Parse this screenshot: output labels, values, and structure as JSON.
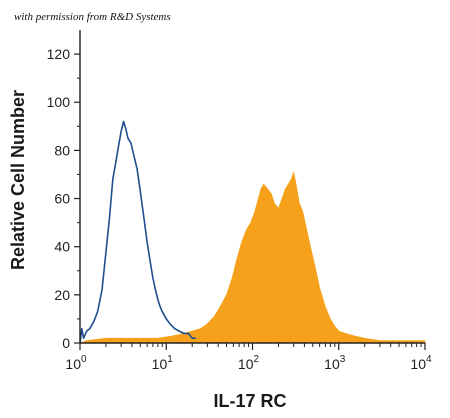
{
  "credit": "with permission from R&D Systems",
  "chart_data": {
    "type": "area",
    "xlabel": "IL-17 RC",
    "ylabel": "Relative Cell Number",
    "xscale": "log",
    "xlim": [
      1,
      10000
    ],
    "ylim": [
      0,
      130
    ],
    "x_ticks": [
      {
        "value": 1,
        "base": "10",
        "exp": "0"
      },
      {
        "value": 10,
        "base": "10",
        "exp": "1"
      },
      {
        "value": 100,
        "base": "10",
        "exp": "2"
      },
      {
        "value": 1000,
        "base": "10",
        "exp": "3"
      },
      {
        "value": 10000,
        "base": "10",
        "exp": "4"
      }
    ],
    "y_ticks": [
      0,
      20,
      40,
      60,
      80,
      100,
      120
    ],
    "grid": false,
    "legend": "none",
    "series": [
      {
        "style": "outline",
        "color": "#1f4e8c",
        "points": [
          [
            1.0,
            0
          ],
          [
            1.05,
            6
          ],
          [
            1.1,
            2
          ],
          [
            1.2,
            5
          ],
          [
            1.3,
            6
          ],
          [
            1.45,
            9
          ],
          [
            1.6,
            13
          ],
          [
            1.8,
            22
          ],
          [
            2.0,
            38
          ],
          [
            2.2,
            52
          ],
          [
            2.4,
            68
          ],
          [
            2.6,
            75
          ],
          [
            2.8,
            82
          ],
          [
            3.0,
            88
          ],
          [
            3.2,
            92
          ],
          [
            3.4,
            89
          ],
          [
            3.6,
            85
          ],
          [
            3.9,
            83
          ],
          [
            4.2,
            78
          ],
          [
            4.6,
            72
          ],
          [
            5.0,
            63
          ],
          [
            5.5,
            52
          ],
          [
            6.0,
            42
          ],
          [
            6.5,
            34
          ],
          [
            7.0,
            27
          ],
          [
            7.5,
            22
          ],
          [
            8.0,
            18
          ],
          [
            8.5,
            15
          ],
          [
            9.0,
            13
          ],
          [
            10.0,
            10
          ],
          [
            11.0,
            8
          ],
          [
            12.5,
            6
          ],
          [
            14.0,
            5
          ],
          [
            16.0,
            4
          ],
          [
            18.0,
            4
          ],
          [
            20.0,
            2
          ],
          [
            22.0,
            2
          ]
        ]
      },
      {
        "style": "filled",
        "color": "#f5a11c",
        "points": [
          [
            1.0,
            0
          ],
          [
            1.2,
            1
          ],
          [
            2.0,
            2
          ],
          [
            3.0,
            2
          ],
          [
            5.0,
            2
          ],
          [
            8.0,
            2
          ],
          [
            12.0,
            3
          ],
          [
            16.0,
            4
          ],
          [
            20.0,
            5
          ],
          [
            25.0,
            6
          ],
          [
            30.0,
            8
          ],
          [
            36.0,
            11
          ],
          [
            42.0,
            15
          ],
          [
            50.0,
            20
          ],
          [
            58.0,
            27
          ],
          [
            66.0,
            35
          ],
          [
            75.0,
            42
          ],
          [
            85.0,
            47
          ],
          [
            95.0,
            50
          ],
          [
            105.0,
            54
          ],
          [
            115.0,
            59
          ],
          [
            125.0,
            64
          ],
          [
            135.0,
            66
          ],
          [
            150.0,
            64
          ],
          [
            165.0,
            62
          ],
          [
            180.0,
            58
          ],
          [
            200.0,
            56
          ],
          [
            220.0,
            60
          ],
          [
            240.0,
            64
          ],
          [
            260.0,
            66
          ],
          [
            280.0,
            68
          ],
          [
            300.0,
            71
          ],
          [
            320.0,
            66
          ],
          [
            350.0,
            58
          ],
          [
            380.0,
            55
          ],
          [
            420.0,
            48
          ],
          [
            470.0,
            40
          ],
          [
            530.0,
            32
          ],
          [
            600.0,
            23
          ],
          [
            700.0,
            15
          ],
          [
            800.0,
            10
          ],
          [
            900.0,
            7
          ],
          [
            1000.0,
            5
          ],
          [
            1200.0,
            4
          ],
          [
            1500.0,
            3
          ],
          [
            2000.0,
            2
          ],
          [
            3000.0,
            1
          ],
          [
            5000.0,
            1
          ],
          [
            10000.0,
            1
          ]
        ]
      }
    ]
  }
}
